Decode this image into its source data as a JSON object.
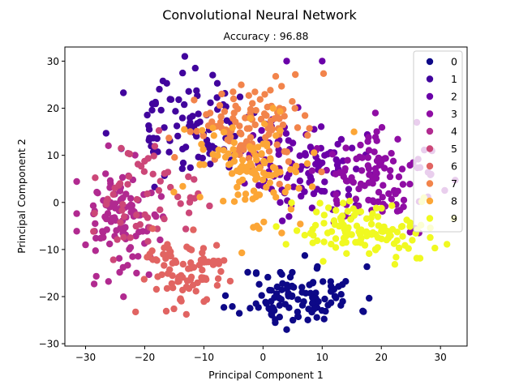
{
  "chart_data": {
    "type": "scatter",
    "suptitle": "Convolutional Neural Network",
    "title": "Accuracy : 96.88",
    "xlabel": "Principal Component 1",
    "ylabel": "Principal Component 2",
    "xlim": [
      -33.5,
      34.5
    ],
    "ylim": [
      -30.5,
      33
    ],
    "xticks": [
      -30,
      -20,
      -10,
      0,
      10,
      20,
      30
    ],
    "yticks": [
      -30,
      -20,
      -10,
      0,
      10,
      20,
      30
    ],
    "xtick_labels": [
      "−30",
      "−20",
      "−10",
      "0",
      "10",
      "20",
      "30"
    ],
    "ytick_labels": [
      "−30",
      "−20",
      "−10",
      "0",
      "10",
      "20",
      "30"
    ],
    "grid": false,
    "legend_position": "top-right",
    "series": [
      {
        "name": "0",
        "color": "#0d0887",
        "center": [
          6,
          -20
        ],
        "spread": [
          5,
          3.2
        ],
        "n": 110,
        "seed": 11
      },
      {
        "name": "1",
        "color": "#41049d",
        "center": [
          -13,
          16
        ],
        "spread": [
          5,
          5
        ],
        "n": 90,
        "seed": 23
      },
      {
        "name": "2",
        "color": "#6a00a8",
        "center": [
          7,
          8
        ],
        "spread": [
          5,
          5
        ],
        "n": 100,
        "seed": 37
      },
      {
        "name": "3",
        "color": "#8f0da4",
        "center": [
          20,
          5
        ],
        "spread": [
          5,
          4.5
        ],
        "n": 110,
        "seed": 41
      },
      {
        "name": "4",
        "color": "#b12a90",
        "center": [
          -24,
          -3
        ],
        "spread": [
          3.5,
          6
        ],
        "n": 110,
        "seed": 53
      },
      {
        "name": "5",
        "color": "#cc4778",
        "center": [
          -20,
          0
        ],
        "spread": [
          5,
          6
        ],
        "n": 60,
        "seed": 67
      },
      {
        "name": "6",
        "color": "#e16462",
        "center": [
          -13,
          -15
        ],
        "spread": [
          4,
          4
        ],
        "n": 90,
        "seed": 71
      },
      {
        "name": "7",
        "color": "#f2844b",
        "center": [
          -2,
          16
        ],
        "spread": [
          5,
          4.5
        ],
        "n": 110,
        "seed": 83
      },
      {
        "name": "8",
        "color": "#fca636",
        "center": [
          -3,
          7
        ],
        "spread": [
          6,
          6
        ],
        "n": 110,
        "seed": 97
      },
      {
        "name": "9",
        "color": "#fcce25",
        "center": [
          17,
          -6
        ],
        "spread": [
          6,
          3
        ],
        "n": 120,
        "seed": 101
      }
    ],
    "extra_points": [
      {
        "series": "9",
        "color": "#f0f921"
      }
    ],
    "outliers": [
      {
        "series": "2",
        "x": 4,
        "y": 30
      },
      {
        "series": "2",
        "x": 10,
        "y": 30
      },
      {
        "series": "3",
        "x": 19,
        "y": 19
      },
      {
        "series": "3",
        "x": 26,
        "y": 17
      },
      {
        "series": "0",
        "x": 4,
        "y": -27
      },
      {
        "series": "4",
        "x": -30,
        "y": -9
      }
    ]
  },
  "legend_colors": [
    "#0d0887",
    "#41049d",
    "#6a00a8",
    "#8f0da4",
    "#b12a90",
    "#cc4778",
    "#e16462",
    "#f2844b",
    "#fca636",
    "#f0f921"
  ]
}
